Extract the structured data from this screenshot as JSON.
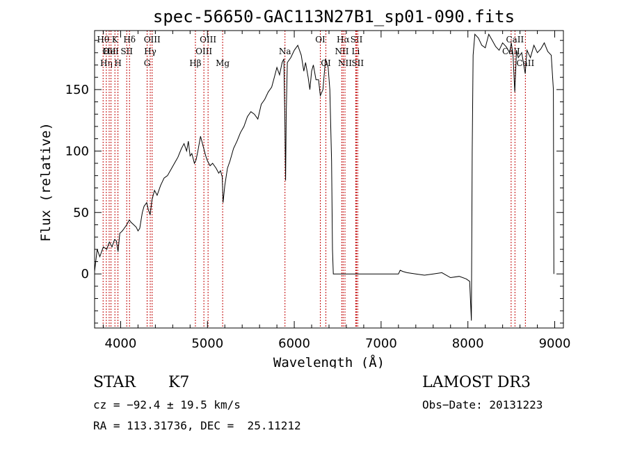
{
  "chart_data": {
    "type": "line",
    "title": "spec-56650-GAC113N27B1_sp01-090.fits",
    "xlabel": "Wavelength (Å)",
    "ylabel": "Flux (relative)",
    "xlim": [
      3700,
      9100
    ],
    "ylim": [
      -44,
      198
    ],
    "xticks": [
      4000,
      5000,
      6000,
      7000,
      8000,
      9000
    ],
    "yticks": [
      0,
      50,
      100,
      150
    ],
    "grid": false,
    "series": [
      {
        "points": [
          [
            3700,
            2
          ],
          [
            3730,
            20
          ],
          [
            3760,
            14
          ],
          [
            3800,
            22
          ],
          [
            3840,
            20
          ],
          [
            3870,
            26
          ],
          [
            3900,
            22
          ],
          [
            3930,
            28
          ],
          [
            3950,
            27
          ],
          [
            3970,
            18
          ],
          [
            3990,
            33
          ],
          [
            4020,
            35
          ],
          [
            4050,
            38
          ],
          [
            4070,
            40
          ],
          [
            4100,
            44
          ],
          [
            4120,
            42
          ],
          [
            4150,
            40
          ],
          [
            4180,
            38
          ],
          [
            4200,
            35
          ],
          [
            4220,
            37
          ],
          [
            4250,
            50
          ],
          [
            4270,
            55
          ],
          [
            4300,
            58
          ],
          [
            4320,
            52
          ],
          [
            4340,
            48
          ],
          [
            4360,
            60
          ],
          [
            4390,
            68
          ],
          [
            4420,
            64
          ],
          [
            4460,
            72
          ],
          [
            4500,
            78
          ],
          [
            4540,
            80
          ],
          [
            4580,
            85
          ],
          [
            4620,
            90
          ],
          [
            4660,
            95
          ],
          [
            4700,
            102
          ],
          [
            4730,
            106
          ],
          [
            4760,
            100
          ],
          [
            4780,
            108
          ],
          [
            4800,
            96
          ],
          [
            4820,
            98
          ],
          [
            4850,
            90
          ],
          [
            4870,
            93
          ],
          [
            4890,
            100
          ],
          [
            4920,
            112
          ],
          [
            4950,
            104
          ],
          [
            4980,
            96
          ],
          [
            5000,
            92
          ],
          [
            5030,
            88
          ],
          [
            5060,
            90
          ],
          [
            5100,
            86
          ],
          [
            5130,
            82
          ],
          [
            5150,
            84
          ],
          [
            5170,
            79
          ],
          [
            5180,
            58
          ],
          [
            5200,
            72
          ],
          [
            5230,
            86
          ],
          [
            5260,
            92
          ],
          [
            5300,
            102
          ],
          [
            5340,
            108
          ],
          [
            5380,
            115
          ],
          [
            5420,
            120
          ],
          [
            5460,
            128
          ],
          [
            5500,
            132
          ],
          [
            5540,
            130
          ],
          [
            5580,
            126
          ],
          [
            5620,
            138
          ],
          [
            5660,
            142
          ],
          [
            5700,
            148
          ],
          [
            5740,
            152
          ],
          [
            5770,
            160
          ],
          [
            5800,
            168
          ],
          [
            5830,
            162
          ],
          [
            5860,
            172
          ],
          [
            5880,
            175
          ],
          [
            5893,
            120
          ],
          [
            5900,
            76
          ],
          [
            5907,
            130
          ],
          [
            5920,
            172
          ],
          [
            5960,
            176
          ],
          [
            6000,
            182
          ],
          [
            6040,
            186
          ],
          [
            6080,
            178
          ],
          [
            6110,
            165
          ],
          [
            6130,
            172
          ],
          [
            6160,
            160
          ],
          [
            6180,
            150
          ],
          [
            6200,
            165
          ],
          [
            6220,
            170
          ],
          [
            6250,
            158
          ],
          [
            6280,
            158
          ],
          [
            6300,
            145
          ],
          [
            6330,
            150
          ],
          [
            6360,
            175
          ],
          [
            6390,
            168
          ],
          [
            6410,
            150
          ],
          [
            6430,
            92
          ],
          [
            6440,
            20
          ],
          [
            6450,
            0
          ],
          [
            7000,
            0
          ],
          [
            7200,
            0
          ],
          [
            7220,
            3
          ],
          [
            7250,
            2
          ],
          [
            7300,
            1
          ],
          [
            7400,
            0
          ],
          [
            7500,
            -1
          ],
          [
            7600,
            0
          ],
          [
            7700,
            1
          ],
          [
            7800,
            -3
          ],
          [
            7900,
            -2
          ],
          [
            7980,
            -4
          ],
          [
            8020,
            -6
          ],
          [
            8040,
            -38
          ],
          [
            8050,
            100
          ],
          [
            8060,
            178
          ],
          [
            8080,
            195
          ],
          [
            8120,
            192
          ],
          [
            8160,
            186
          ],
          [
            8200,
            184
          ],
          [
            8240,
            195
          ],
          [
            8280,
            190
          ],
          [
            8320,
            185
          ],
          [
            8360,
            182
          ],
          [
            8400,
            188
          ],
          [
            8440,
            185
          ],
          [
            8480,
            180
          ],
          [
            8500,
            188
          ],
          [
            8520,
            178
          ],
          [
            8540,
            148
          ],
          [
            8560,
            182
          ],
          [
            8580,
            176
          ],
          [
            8620,
            180
          ],
          [
            8660,
            163
          ],
          [
            8680,
            182
          ],
          [
            8720,
            176
          ],
          [
            8760,
            186
          ],
          [
            8800,
            180
          ],
          [
            8840,
            183
          ],
          [
            8880,
            188
          ],
          [
            8920,
            181
          ],
          [
            8960,
            178
          ],
          [
            8985,
            150
          ],
          [
            8990,
            0
          ]
        ]
      }
    ],
    "line_markers": [
      {
        "wl": 3798,
        "label": "Hθ",
        "row": 0
      },
      {
        "wl": 3835,
        "label": "Hη",
        "row": 2
      },
      {
        "wl": 3868,
        "label": "OII",
        "row": 1
      },
      {
        "wl": 3889,
        "label": "HeI",
        "row": 1
      },
      {
        "wl": 3934,
        "label": "K",
        "row": 0
      },
      {
        "wl": 3969,
        "label": "H",
        "row": 2
      },
      {
        "wl": 4070,
        "label": "SII",
        "row": 1
      },
      {
        "wl": 4102,
        "label": "Hδ",
        "row": 0
      },
      {
        "wl": 4305,
        "label": "G",
        "row": 2
      },
      {
        "wl": 4341,
        "label": "Hγ",
        "row": 1
      },
      {
        "wl": 4363,
        "label": "OIII",
        "row": 0
      },
      {
        "wl": 4861,
        "label": "Hβ",
        "row": 2
      },
      {
        "wl": 4959,
        "label": "OIII",
        "row": 1
      },
      {
        "wl": 5007,
        "label": "OIII",
        "row": 0
      },
      {
        "wl": 5175,
        "label": "Mg",
        "row": 2
      },
      {
        "wl": 5893,
        "label": "Na",
        "row": 1
      },
      {
        "wl": 6300,
        "label": "OI",
        "row": 0
      },
      {
        "wl": 6364,
        "label": "OI",
        "row": 2
      },
      {
        "wl": 6548,
        "label": "NII",
        "row": 1
      },
      {
        "wl": 6563,
        "label": "Hα",
        "row": 0
      },
      {
        "wl": 6584,
        "label": "NII",
        "row": 2
      },
      {
        "wl": 6708,
        "label": "Li",
        "row": 1
      },
      {
        "wl": 6717,
        "label": "SII",
        "row": 0
      },
      {
        "wl": 6731,
        "label": "SII",
        "row": 2
      },
      {
        "wl": 8498,
        "label": "CaII",
        "row": 1
      },
      {
        "wl": 8542,
        "label": "CaII",
        "row": 0
      },
      {
        "wl": 8662,
        "label": "CaII",
        "row": 2
      }
    ],
    "marker_color": "#c00000"
  },
  "info": {
    "class_label": "STAR",
    "subclass": "K7",
    "survey": "LAMOST DR3",
    "cz": "cz = −92.4 ± 19.5 km/s",
    "obs_date": "Obs−Date: 20131223",
    "radec": "RA = 113.31736, DEC =  25.11212"
  }
}
